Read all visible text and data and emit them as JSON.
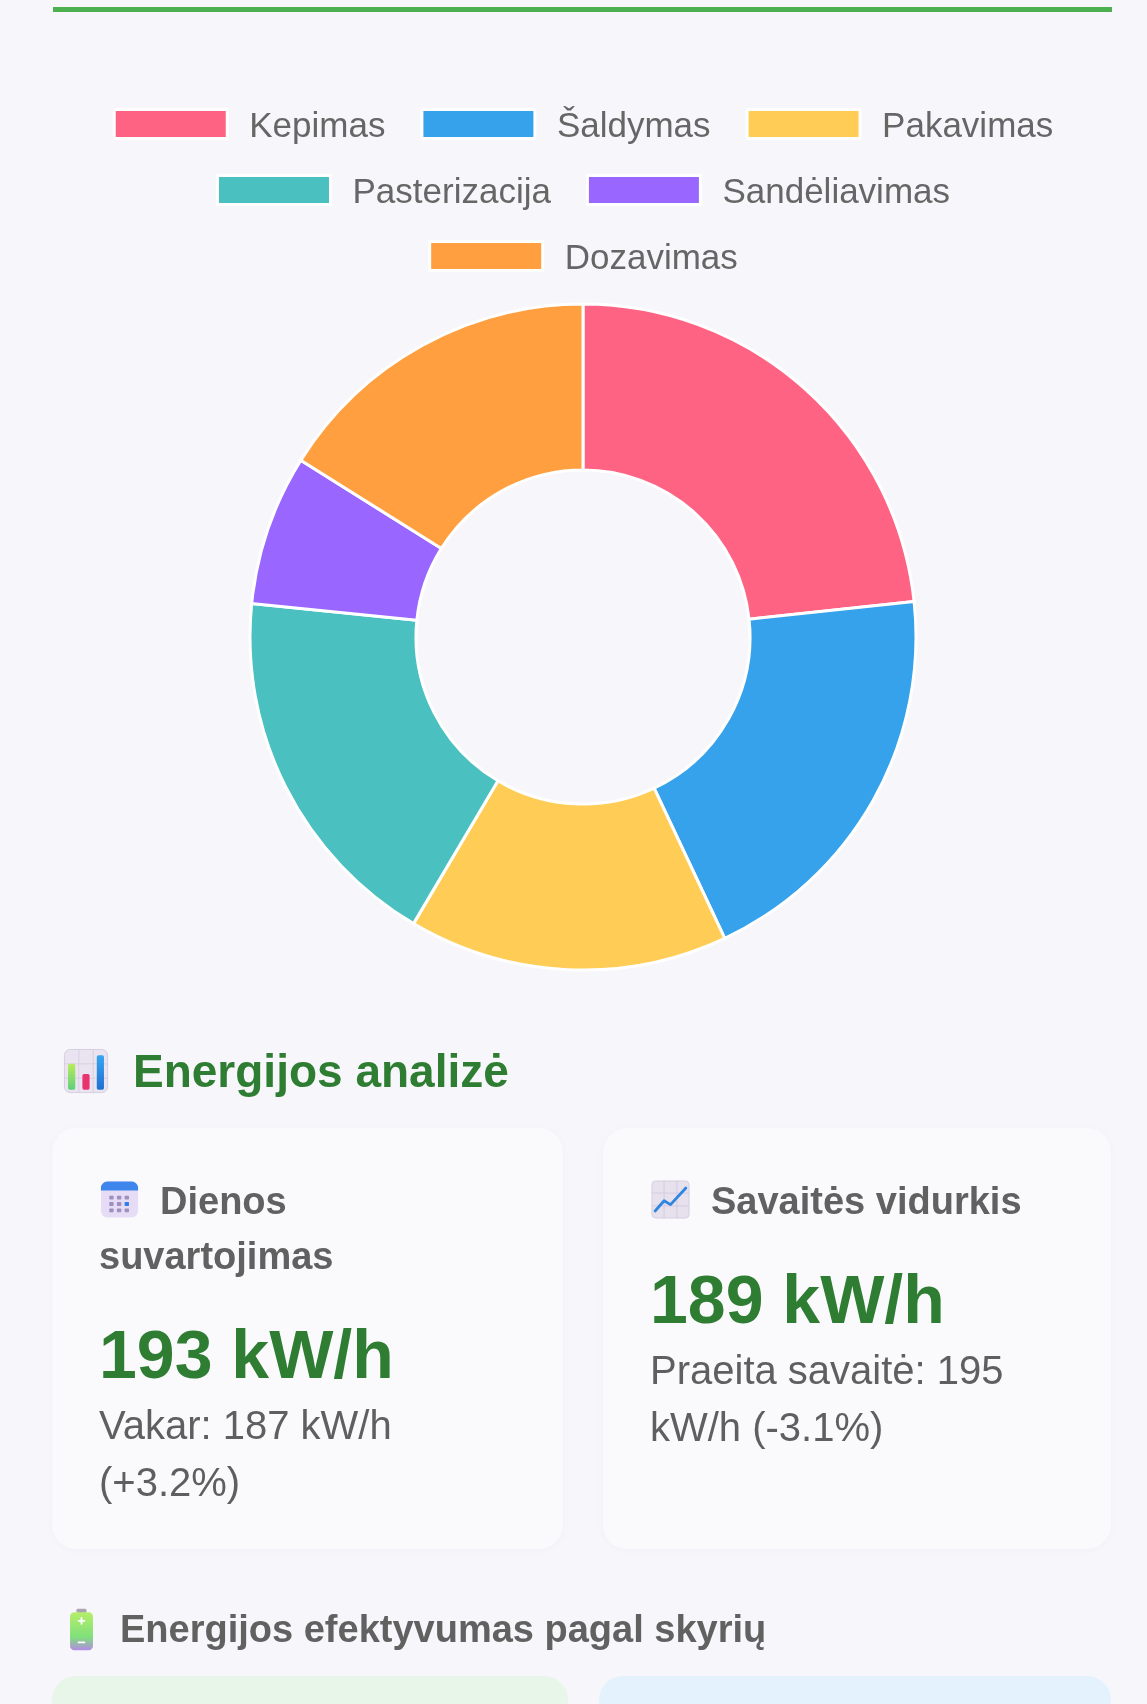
{
  "chart_data": [
    {
      "type": "donut",
      "categories": [
        "Kepimas",
        "Šaldymas",
        "Pakavimas",
        "Pasterizacija",
        "Sandėliavimas",
        "Dozavimas"
      ],
      "values": [
        23.3,
        19.7,
        15.5,
        18.1,
        7.3,
        16.1
      ],
      "colors": [
        "#ff6384",
        "#36a2eb",
        "#ffcd56",
        "#4bc0c0",
        "#9966ff",
        "#ff9f40"
      ],
      "legend": "top"
    },
    {
      "type": "other",
      "title": "Energijos analizė",
      "annotations": [
        "Dienos suvartojimas",
        "193 kW/h",
        "Vakar: 187 kW/h (+3.2%)",
        "Savaitės vidurkis",
        "189 kW/h",
        "Praeita savaitė: 195 kW/h (-3.1%)"
      ]
    },
    {
      "type": "other",
      "title": "Energijos efektyvumas pagal skyrių"
    }
  ]
}
